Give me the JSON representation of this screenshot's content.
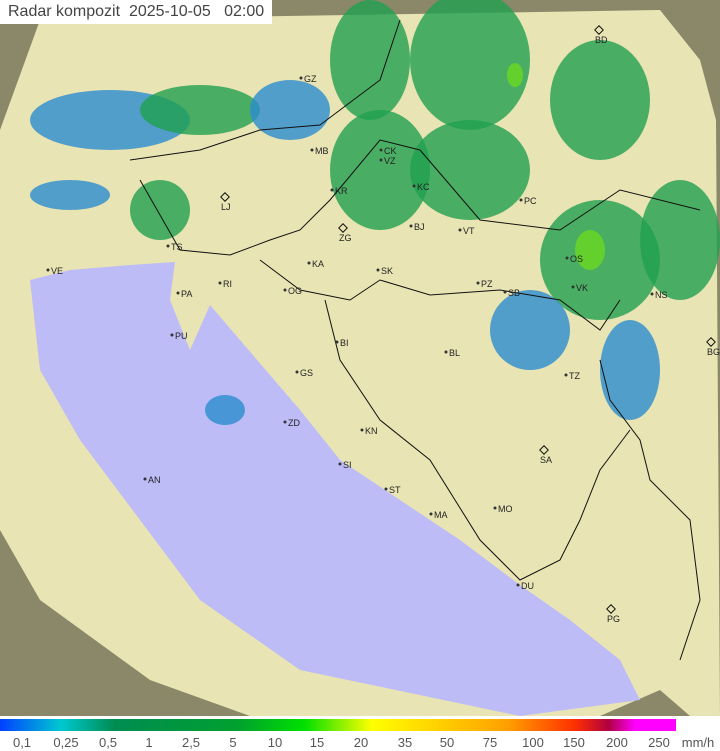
{
  "title": "Radar kompozit  2025-10-05   02:00",
  "legend": {
    "unit": "mm/h",
    "ticks": [
      "0,1",
      "0,25",
      "0,5",
      "1",
      "2,5",
      "5",
      "10",
      "15",
      "20",
      "35",
      "50",
      "75",
      "100",
      "150",
      "200",
      "250"
    ]
  },
  "colors": {
    "land": "#e9e4b4",
    "sea": "#bdbcf6",
    "outside": "#8a8868",
    "rain_light": "#2c8cd0",
    "rain_mid": "#20a050",
    "rain_heavy": "#6cd820"
  },
  "cities": [
    {
      "code": "BD",
      "capital": true
    },
    {
      "code": "GZ"
    },
    {
      "code": "MB"
    },
    {
      "code": "CK"
    },
    {
      "code": "VZ"
    },
    {
      "code": "KR"
    },
    {
      "code": "KC"
    },
    {
      "code": "LJ",
      "capital": true
    },
    {
      "code": "ZG",
      "capital": true
    },
    {
      "code": "BJ"
    },
    {
      "code": "VT"
    },
    {
      "code": "PC"
    },
    {
      "code": "TS"
    },
    {
      "code": "VE"
    },
    {
      "code": "KA"
    },
    {
      "code": "SK"
    },
    {
      "code": "RI"
    },
    {
      "code": "OS"
    },
    {
      "code": "PA"
    },
    {
      "code": "OG"
    },
    {
      "code": "PZ"
    },
    {
      "code": "SB"
    },
    {
      "code": "VK"
    },
    {
      "code": "NS"
    },
    {
      "code": "PU"
    },
    {
      "code": "BG",
      "capital": true
    },
    {
      "code": "BI"
    },
    {
      "code": "BL"
    },
    {
      "code": "TZ"
    },
    {
      "code": "GS"
    },
    {
      "code": "ZD"
    },
    {
      "code": "KN"
    },
    {
      "code": "SA",
      "capital": true
    },
    {
      "code": "SI"
    },
    {
      "code": "AN"
    },
    {
      "code": "ST"
    },
    {
      "code": "MA"
    },
    {
      "code": "MO"
    },
    {
      "code": "DU"
    },
    {
      "code": "PG",
      "capital": true
    }
  ]
}
